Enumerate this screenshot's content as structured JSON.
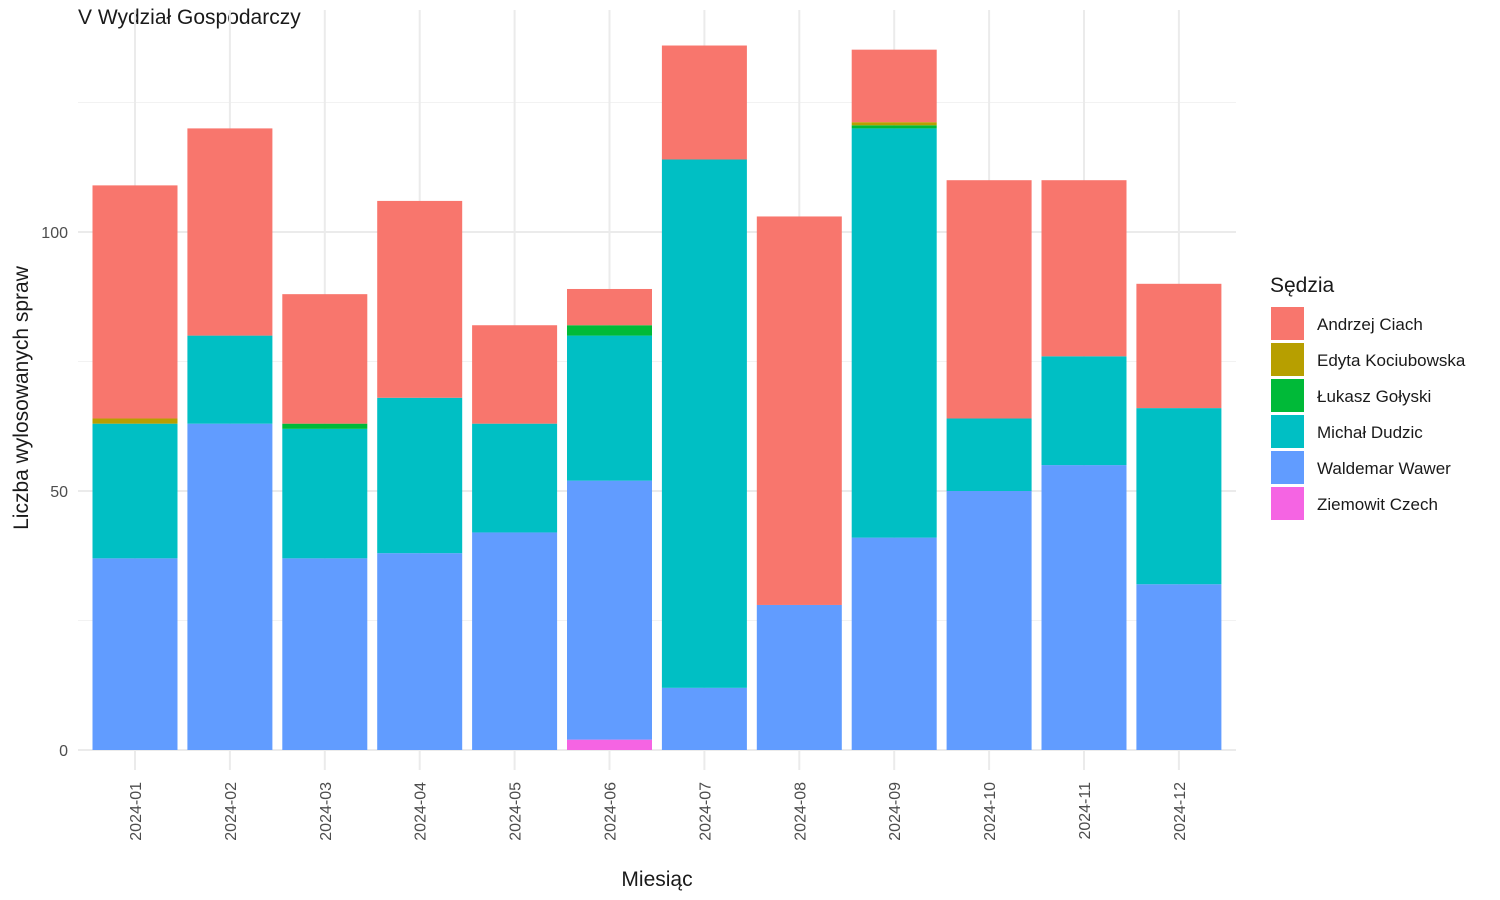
{
  "chart_data": {
    "type": "bar",
    "stacked": true,
    "title": "V Wydział Gospodarczy",
    "xlabel": "Miesiąc",
    "ylabel": "Liczba wylosowanych spraw",
    "ylim": [
      0,
      138
    ],
    "yticks": [
      0,
      50,
      100
    ],
    "grid": true,
    "legend_title": "Sędzia",
    "legend_position": "right",
    "categories": [
      "2024-01",
      "2024-02",
      "2024-03",
      "2024-04",
      "2024-05",
      "2024-06",
      "2024-07",
      "2024-08",
      "2024-09",
      "2024-10",
      "2024-11",
      "2024-12"
    ],
    "series": [
      {
        "name": "Ziemowit Czech",
        "color": "#F564E3",
        "values": [
          0,
          0,
          0,
          0,
          0,
          2,
          0,
          0,
          0,
          0,
          0,
          0
        ]
      },
      {
        "name": "Waldemar Wawer",
        "color": "#619CFF",
        "values": [
          37,
          63,
          37,
          38,
          42,
          50,
          12,
          28,
          41,
          50,
          55,
          32
        ]
      },
      {
        "name": "Michał Dudzic",
        "color": "#00BFC4",
        "values": [
          26,
          17,
          25,
          30,
          21,
          28,
          102,
          0,
          79,
          14,
          21,
          34
        ]
      },
      {
        "name": "Łukasz Gołyski",
        "color": "#00BA38",
        "values": [
          0,
          0,
          1,
          0,
          0,
          2,
          0,
          0,
          0.6,
          0,
          0,
          0
        ]
      },
      {
        "name": "Edyta Kociubowska",
        "color": "#B79F00",
        "values": [
          1,
          0,
          0,
          0,
          0,
          0,
          0,
          0,
          0.6,
          0,
          0,
          0
        ]
      },
      {
        "name": "Andrzej Ciach",
        "color": "#F8766D",
        "values": [
          45,
          40,
          25,
          38,
          19,
          7,
          22,
          75,
          14,
          46,
          34,
          24
        ]
      }
    ],
    "legend_order": [
      "Andrzej Ciach",
      "Edyta Kociubowska",
      "Łukasz Gołyski",
      "Michał Dudzic",
      "Waldemar Wawer",
      "Ziemowit Czech"
    ]
  }
}
